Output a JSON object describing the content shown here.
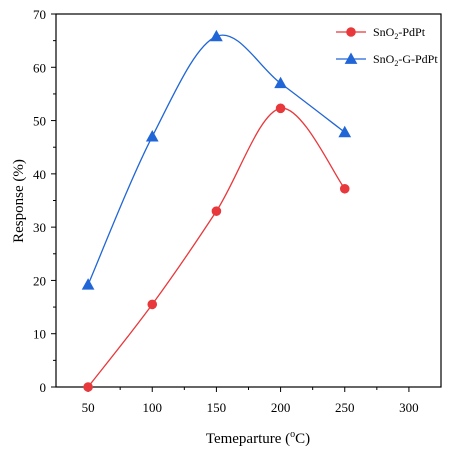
{
  "chart_data": {
    "type": "line",
    "x_label_parts": {
      "prefix": "Temeparture (",
      "sup": "o",
      "suffix": "C)"
    },
    "y_label": "Response (%)",
    "xlim": [
      25,
      325
    ],
    "ylim": [
      0,
      70
    ],
    "x_ticks": [
      50,
      100,
      150,
      200,
      250,
      300
    ],
    "y_ticks": [
      0,
      10,
      20,
      30,
      40,
      50,
      60,
      70
    ],
    "legend_position": "top-right",
    "grid": false,
    "series": [
      {
        "name": "SnO2-PdPt",
        "name_parts": {
          "a": "SnO",
          "sub": "2",
          "b": "-PdPt"
        },
        "color": "#e8383b",
        "marker": "circle",
        "x": [
          50,
          100,
          150,
          200,
          250
        ],
        "y": [
          0,
          15.5,
          33,
          52.3,
          37.2
        ]
      },
      {
        "name": "SnO2-G-PdPt",
        "name_parts": {
          "a": "SnO",
          "sub": "2",
          "b": "-G-PdPt"
        },
        "color": "#2166d6",
        "marker": "triangle",
        "x": [
          50,
          100,
          150,
          200,
          250
        ],
        "y": [
          19.2,
          47,
          65.8,
          57,
          47.8
        ]
      }
    ]
  }
}
